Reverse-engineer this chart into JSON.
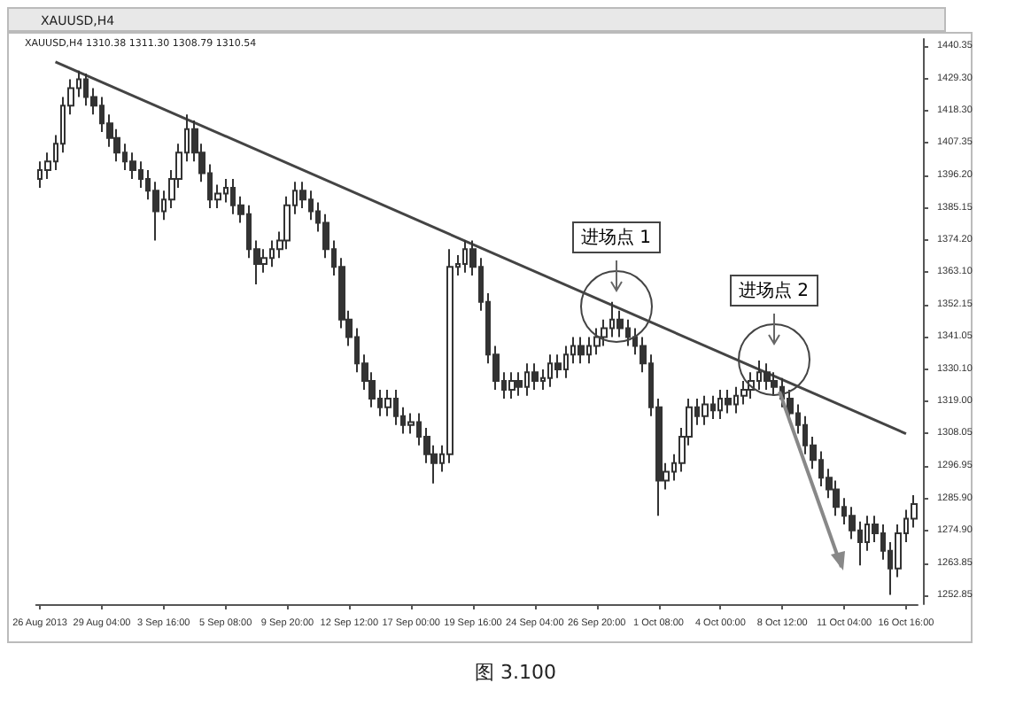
{
  "chart_data": {
    "type": "candlestick",
    "title": "XAUUSD,H4",
    "subtitle": "XAUUSD,H4 1310.38 1311.30 1308.79 1310.54",
    "categories": [
      "26 Aug 2013",
      null,
      null,
      null,
      null,
      null,
      null,
      null,
      "29 Aug 04:00",
      null,
      null,
      null,
      null,
      null,
      null,
      null,
      "3 Sep 16:00",
      null,
      null,
      null,
      null,
      null,
      null,
      null,
      "5 Sep 08:00",
      null,
      null,
      null,
      null,
      null,
      null,
      null,
      "9 Sep 20:00",
      null,
      null,
      null,
      null,
      null,
      null,
      null,
      "12 Sep 12:00",
      null,
      null,
      null,
      null,
      null,
      null,
      null,
      "17 Sep 00:00",
      null,
      null,
      null,
      null,
      null,
      null,
      null,
      "19 Sep 16:00",
      null,
      null,
      null,
      null,
      null,
      null,
      null,
      "24 Sep 04:00",
      null,
      null,
      null,
      null,
      null,
      null,
      null,
      "26 Sep 20:00",
      null,
      null,
      null,
      null,
      null,
      null,
      null,
      "1 Oct 08:00",
      null,
      null,
      null,
      null,
      null,
      null,
      null,
      "4 Oct 00:00",
      null,
      null,
      null,
      null,
      null,
      null,
      null,
      "8 Oct 12:00",
      null,
      null,
      null,
      null,
      null,
      null,
      null,
      "11 Oct 04:00",
      null,
      null,
      null,
      null,
      null,
      null,
      null,
      "16 Oct 16:00",
      null
    ],
    "series": [
      {
        "color": "#333333",
        "ohlc": [
          [
            1395,
            1401,
            1392,
            1398
          ],
          [
            1398,
            1404,
            1395,
            1401
          ],
          [
            1401,
            1410,
            1398,
            1407
          ],
          [
            1407,
            1423,
            1404,
            1420
          ],
          [
            1420,
            1429,
            1417,
            1426
          ],
          [
            1426,
            1432,
            1423,
            1429
          ],
          [
            1429,
            1431,
            1420,
            1423
          ],
          [
            1423,
            1426,
            1417,
            1420
          ],
          [
            1420,
            1423,
            1411,
            1414
          ],
          [
            1414,
            1417,
            1406,
            1409
          ],
          [
            1409,
            1412,
            1401,
            1404
          ],
          [
            1404,
            1407,
            1398,
            1401
          ],
          [
            1401,
            1404,
            1395,
            1398
          ],
          [
            1398,
            1401,
            1392,
            1395
          ],
          [
            1395,
            1398,
            1388,
            1391
          ],
          [
            1391,
            1394,
            1374,
            1384
          ],
          [
            1384,
            1391,
            1381,
            1388
          ],
          [
            1388,
            1398,
            1385,
            1395
          ],
          [
            1395,
            1407,
            1392,
            1404
          ],
          [
            1404,
            1417,
            1401,
            1412
          ],
          [
            1412,
            1415,
            1401,
            1404
          ],
          [
            1404,
            1407,
            1394,
            1397
          ],
          [
            1397,
            1400,
            1385,
            1388
          ],
          [
            1388,
            1393,
            1385,
            1390
          ],
          [
            1390,
            1395,
            1387,
            1392
          ],
          [
            1392,
            1395,
            1383,
            1386
          ],
          [
            1386,
            1389,
            1380,
            1383
          ],
          [
            1383,
            1386,
            1368,
            1371
          ],
          [
            1371,
            1374,
            1359,
            1366
          ],
          [
            1366,
            1371,
            1363,
            1368
          ],
          [
            1368,
            1374,
            1365,
            1371
          ],
          [
            1371,
            1377,
            1368,
            1374
          ],
          [
            1374,
            1389,
            1371,
            1386
          ],
          [
            1386,
            1394,
            1383,
            1391
          ],
          [
            1391,
            1394,
            1385,
            1388
          ],
          [
            1388,
            1391,
            1381,
            1384
          ],
          [
            1384,
            1387,
            1377,
            1380
          ],
          [
            1380,
            1383,
            1368,
            1371
          ],
          [
            1371,
            1374,
            1362,
            1365
          ],
          [
            1365,
            1368,
            1344,
            1347
          ],
          [
            1347,
            1350,
            1338,
            1341
          ],
          [
            1341,
            1344,
            1329,
            1332
          ],
          [
            1332,
            1335,
            1323,
            1326
          ],
          [
            1326,
            1329,
            1317,
            1320
          ],
          [
            1320,
            1323,
            1314,
            1317
          ],
          [
            1317,
            1323,
            1314,
            1320
          ],
          [
            1320,
            1323,
            1311,
            1314
          ],
          [
            1314,
            1317,
            1308,
            1311
          ],
          [
            1311,
            1315,
            1308,
            1312
          ],
          [
            1312,
            1315,
            1304,
            1307
          ],
          [
            1307,
            1310,
            1298,
            1301
          ],
          [
            1301,
            1304,
            1291,
            1298
          ],
          [
            1298,
            1304,
            1295,
            1301
          ],
          [
            1301,
            1371,
            1298,
            1365
          ],
          [
            1365,
            1369,
            1362,
            1366
          ],
          [
            1366,
            1374,
            1363,
            1371
          ],
          [
            1371,
            1374,
            1362,
            1365
          ],
          [
            1365,
            1368,
            1350,
            1353
          ],
          [
            1353,
            1356,
            1332,
            1335
          ],
          [
            1335,
            1338,
            1323,
            1326
          ],
          [
            1326,
            1329,
            1320,
            1323
          ],
          [
            1323,
            1329,
            1320,
            1326
          ],
          [
            1326,
            1329,
            1321,
            1324
          ],
          [
            1324,
            1332,
            1321,
            1329
          ],
          [
            1329,
            1332,
            1323,
            1326
          ],
          [
            1326,
            1330,
            1323,
            1327
          ],
          [
            1327,
            1335,
            1324,
            1332
          ],
          [
            1332,
            1335,
            1327,
            1330
          ],
          [
            1330,
            1338,
            1327,
            1335
          ],
          [
            1335,
            1341,
            1332,
            1338
          ],
          [
            1338,
            1341,
            1332,
            1335
          ],
          [
            1335,
            1341,
            1332,
            1338
          ],
          [
            1338,
            1344,
            1335,
            1341
          ],
          [
            1341,
            1347,
            1338,
            1344
          ],
          [
            1344,
            1353,
            1341,
            1347
          ],
          [
            1347,
            1350,
            1341,
            1344
          ],
          [
            1344,
            1347,
            1338,
            1341
          ],
          [
            1341,
            1344,
            1335,
            1338
          ],
          [
            1338,
            1341,
            1329,
            1332
          ],
          [
            1332,
            1335,
            1314,
            1317
          ],
          [
            1317,
            1320,
            1280,
            1292
          ],
          [
            1292,
            1298,
            1289,
            1295
          ],
          [
            1295,
            1301,
            1292,
            1298
          ],
          [
            1298,
            1310,
            1295,
            1307
          ],
          [
            1307,
            1320,
            1304,
            1317
          ],
          [
            1317,
            1320,
            1311,
            1314
          ],
          [
            1314,
            1321,
            1311,
            1318
          ],
          [
            1318,
            1321,
            1313,
            1316
          ],
          [
            1316,
            1323,
            1313,
            1320
          ],
          [
            1320,
            1323,
            1315,
            1318
          ],
          [
            1318,
            1324,
            1315,
            1321
          ],
          [
            1321,
            1326,
            1318,
            1323
          ],
          [
            1323,
            1329,
            1320,
            1326
          ],
          [
            1326,
            1333,
            1323,
            1329
          ],
          [
            1329,
            1332,
            1323,
            1326
          ],
          [
            1326,
            1329,
            1321,
            1324
          ],
          [
            1324,
            1327,
            1317,
            1320
          ],
          [
            1320,
            1323,
            1312,
            1315
          ],
          [
            1315,
            1318,
            1308,
            1311
          ],
          [
            1311,
            1314,
            1301,
            1304
          ],
          [
            1304,
            1307,
            1296,
            1299
          ],
          [
            1299,
            1302,
            1290,
            1293
          ],
          [
            1293,
            1296,
            1286,
            1289
          ],
          [
            1289,
            1292,
            1280,
            1283
          ],
          [
            1283,
            1286,
            1277,
            1280
          ],
          [
            1280,
            1283,
            1272,
            1275
          ],
          [
            1275,
            1278,
            1263,
            1271
          ],
          [
            1271,
            1280,
            1268,
            1277
          ],
          [
            1277,
            1280,
            1271,
            1274
          ],
          [
            1274,
            1277,
            1265,
            1268
          ],
          [
            1268,
            1271,
            1253,
            1262
          ],
          [
            1262,
            1277,
            1259,
            1274
          ],
          [
            1274,
            1282,
            1271,
            1279
          ],
          [
            1279,
            1287,
            1276,
            1284
          ]
        ]
      },
      {
        "type": "line",
        "color": "#444444",
        "values": [
          null,
          null,
          1435,
          null,
          null,
          null,
          null,
          null,
          null,
          null,
          null,
          null,
          null,
          null,
          null,
          null,
          null,
          null,
          null,
          null,
          null,
          null,
          null,
          null,
          null,
          null,
          null,
          null,
          null,
          null,
          null,
          null,
          null,
          null,
          null,
          null,
          null,
          null,
          null,
          null,
          null,
          null,
          null,
          null,
          null,
          null,
          null,
          null,
          null,
          null,
          null,
          null,
          null,
          null,
          null,
          null,
          null,
          null,
          null,
          null,
          null,
          null,
          null,
          null,
          null,
          null,
          null,
          null,
          null,
          null,
          null,
          null,
          null,
          null,
          null,
          null,
          null,
          null,
          null,
          null,
          null,
          null,
          null,
          null,
          null,
          null,
          null,
          null,
          null,
          null,
          null,
          null,
          null,
          null,
          null,
          null,
          null,
          null,
          null,
          null,
          null,
          null,
          null,
          null,
          null,
          null,
          null,
          null,
          null,
          null,
          null,
          null,
          1308,
          null
        ]
      }
    ],
    "ylim": [
      1249.8,
      1442.8
    ],
    "yticks": [
      1252.85,
      1263.85,
      {
        "value": 1274.9,
        "label": "1274.90"
      },
      {
        "value": 1285.9,
        "label": "1285.90"
      },
      1296.95,
      1308.05,
      {
        "value": 1319,
        "label": "1319.00"
      },
      {
        "value": 1330.1,
        "label": "1330.10"
      },
      1341.05,
      1352.15,
      {
        "value": 1363.1,
        "label": "1363.10"
      },
      {
        "value": 1374.2,
        "label": "1374.20"
      },
      1385.15,
      {
        "value": 1396.2,
        "label": "1396.20"
      },
      1407.35,
      {
        "value": 1418.3,
        "label": "1418.30"
      },
      {
        "value": 1429.3,
        "label": "1429.30"
      },
      1440.35
    ],
    "grid": false,
    "annotations": [
      "进场点 1",
      "进场点 2",
      "图 3.100"
    ]
  }
}
